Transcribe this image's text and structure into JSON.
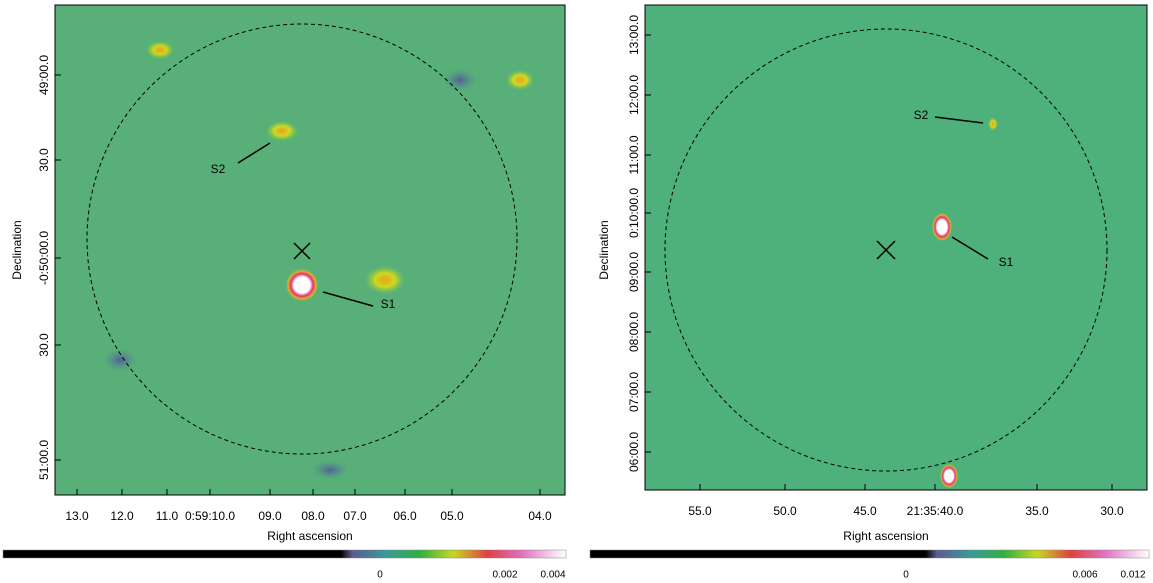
{
  "panels": [
    {
      "xticks": [
        "13.0",
        "12.0",
        "11.0",
        "0:59:10.0",
        "09.0",
        "08.0",
        "07.0",
        "06.0",
        "05.0",
        "04.0"
      ],
      "yticks": [
        "49:00.0",
        "30.0",
        "-0:50:00.0",
        "30.0",
        "51:00.0"
      ],
      "xlabel": "Right ascension",
      "ylabel": "Declination",
      "annotations": [
        "S1",
        "S2"
      ],
      "colorbar_ticks": [
        "0",
        "0.002",
        "0.004"
      ]
    },
    {
      "xticks": [
        "55.0",
        "50.0",
        "45.0",
        "21:35:40.0",
        "35.0",
        "30.0"
      ],
      "yticks": [
        "13:00.0",
        "12:00.0",
        "11:00.0",
        "0:10:00.0",
        "09:00.0",
        "08:00.0",
        "07:00.0",
        "06:00.0"
      ],
      "xlabel": "Right ascension",
      "ylabel": "Declination",
      "annotations": [
        "S1",
        "S2"
      ],
      "colorbar_ticks": [
        "0",
        "0.006",
        "0.012"
      ]
    }
  ]
}
